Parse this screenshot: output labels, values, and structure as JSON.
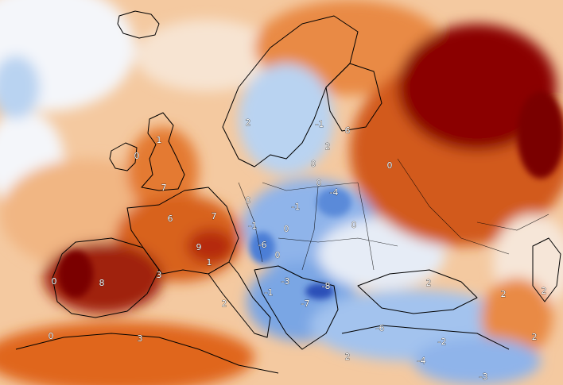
{
  "map": {
    "type": "temperature-anomaly",
    "colors": {
      "deep_red": "#8b0000",
      "red": "#b52a10",
      "orange": "#e0661f",
      "light_orange": "#f1a86c",
      "peach": "#f7d2b1",
      "white": "#f4f6fa",
      "light_blue": "#b9d3f1",
      "blue": "#6f9fe2",
      "deep_blue": "#2b4fb8",
      "coast": "#000000"
    },
    "labels": [
      {
        "id": "ireland",
        "text": "0"
      },
      {
        "id": "scotland",
        "text": "1"
      },
      {
        "id": "england",
        "text": "7"
      },
      {
        "id": "france-north",
        "text": "6"
      },
      {
        "id": "benelux",
        "text": "7"
      },
      {
        "id": "alps",
        "text": "9"
      },
      {
        "id": "switz",
        "text": "1"
      },
      {
        "id": "pyrenees",
        "text": "3"
      },
      {
        "id": "spain",
        "text": "8"
      },
      {
        "id": "portugal",
        "text": "0"
      },
      {
        "id": "med-west",
        "text": "2"
      },
      {
        "id": "north-africa",
        "text": "0"
      },
      {
        "id": "tunisia",
        "text": "3"
      },
      {
        "id": "norway",
        "text": "2"
      },
      {
        "id": "sweden",
        "text": "-1"
      },
      {
        "id": "finland",
        "text": "6"
      },
      {
        "id": "baltic",
        "text": "0"
      },
      {
        "id": "latvia",
        "text": "2"
      },
      {
        "id": "russia-w",
        "text": "0"
      },
      {
        "id": "germany-n",
        "text": "0"
      },
      {
        "id": "germany-c",
        "text": "-1"
      },
      {
        "id": "poland",
        "text": "-4"
      },
      {
        "id": "poland-s",
        "text": "0"
      },
      {
        "id": "belarus",
        "text": "0"
      },
      {
        "id": "germany-s",
        "text": "-1"
      },
      {
        "id": "czech",
        "text": "0"
      },
      {
        "id": "austria",
        "text": "-6"
      },
      {
        "id": "hungary",
        "text": "0"
      },
      {
        "id": "balkans-n",
        "text": "-3"
      },
      {
        "id": "romania",
        "text": "-8"
      },
      {
        "id": "balkans-w",
        "text": "-1"
      },
      {
        "id": "serbia",
        "text": "-7"
      },
      {
        "id": "ukraine",
        "text": "2"
      },
      {
        "id": "black-sea",
        "text": "2"
      },
      {
        "id": "caucasus",
        "text": "2"
      },
      {
        "id": "italy-s",
        "text": "2"
      },
      {
        "id": "turkey-w",
        "text": "-6"
      },
      {
        "id": "turkey-e",
        "text": "-2"
      },
      {
        "id": "east-med",
        "text": "2"
      },
      {
        "id": "levant",
        "text": "-4"
      },
      {
        "id": "south-east",
        "text": "-3"
      }
    ]
  }
}
